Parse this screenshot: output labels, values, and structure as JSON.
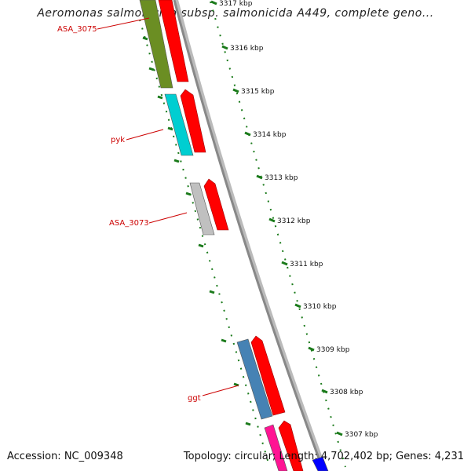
{
  "title": "Aeromonas salmonicida subsp. salmonicida A449, complete geno...",
  "footer": {
    "accession": "Accession: NC_009348",
    "topology": "Topology: circular; Length: 4,702,402 bp; Genes: 4,231"
  },
  "colors": {
    "gene_label": "#cc0000",
    "tick": "#1a7a1a",
    "kbp_label": "#111111",
    "backbone": "#888888",
    "cds_arrow": "#ff0000"
  },
  "kbp_labels": [
    "3317 kbp",
    "3316 kbp",
    "3315 kbp",
    "3314 kbp",
    "3313 kbp",
    "3312 kbp",
    "3311 kbp",
    "3310 kbp",
    "3309 kbp",
    "3308 kbp",
    "3307 kbp"
  ],
  "genes": [
    {
      "name": "ASA_3075",
      "color": "#6b8e23"
    },
    {
      "name": "pyk",
      "color": "#00ced1"
    },
    {
      "name": "ASA_3073",
      "color": "#c0c0c0"
    },
    {
      "name": "ggt",
      "color": "#4682b4"
    },
    {
      "name": "",
      "color": "#ff1493"
    },
    {
      "name": "",
      "color": "#0000ff"
    }
  ]
}
